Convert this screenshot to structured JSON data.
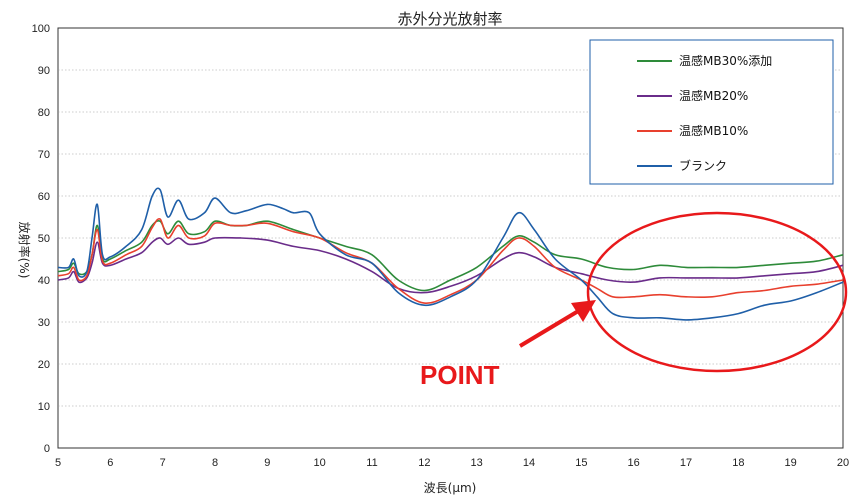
{
  "chart_data": {
    "type": "line",
    "title": "赤外分光放射率",
    "xlabel": "波長(μm)",
    "ylabel": "放射率(%)",
    "xlim": [
      5,
      20
    ],
    "ylim": [
      0,
      100
    ],
    "x_ticks": [
      "5",
      "6",
      "7",
      "8",
      "9",
      "10",
      "11",
      "12",
      "13",
      "14",
      "15",
      "16",
      "17",
      "18",
      "19",
      "20"
    ],
    "y_ticks": [
      "0",
      "10",
      "20",
      "30",
      "40",
      "50",
      "60",
      "70",
      "80",
      "90",
      "100"
    ],
    "grid": true,
    "legend_position": "top-right",
    "series": [
      {
        "name": "温感MB30%添加",
        "color": "#2e8b3a",
        "points": [
          [
            5,
            42
          ],
          [
            5.2,
            42.5
          ],
          [
            5.3,
            44
          ],
          [
            5.4,
            41.5
          ],
          [
            5.55,
            42
          ],
          [
            5.65,
            46
          ],
          [
            5.75,
            53
          ],
          [
            5.85,
            45
          ],
          [
            6,
            45
          ],
          [
            6.3,
            47
          ],
          [
            6.6,
            49
          ],
          [
            6.8,
            53
          ],
          [
            6.95,
            54
          ],
          [
            7.1,
            51
          ],
          [
            7.3,
            54
          ],
          [
            7.5,
            51
          ],
          [
            7.8,
            51.5
          ],
          [
            8,
            54
          ],
          [
            8.3,
            53
          ],
          [
            8.6,
            53
          ],
          [
            9,
            54
          ],
          [
            9.5,
            52
          ],
          [
            10,
            50
          ],
          [
            10.5,
            48
          ],
          [
            11,
            46
          ],
          [
            11.5,
            40
          ],
          [
            12,
            37.5
          ],
          [
            12.5,
            40
          ],
          [
            13,
            43
          ],
          [
            13.5,
            48
          ],
          [
            13.8,
            50.5
          ],
          [
            14.1,
            49
          ],
          [
            14.5,
            46
          ],
          [
            15,
            45
          ],
          [
            15.5,
            43
          ],
          [
            16,
            42.5
          ],
          [
            16.5,
            43.5
          ],
          [
            17,
            43
          ],
          [
            17.5,
            43
          ],
          [
            18,
            43
          ],
          [
            18.5,
            43.5
          ],
          [
            19,
            44
          ],
          [
            19.5,
            44.5
          ],
          [
            20,
            46
          ]
        ]
      },
      {
        "name": "温感MB20%",
        "color": "#6a2c8a",
        "points": [
          [
            5,
            40
          ],
          [
            5.2,
            40.5
          ],
          [
            5.3,
            42
          ],
          [
            5.4,
            39.5
          ],
          [
            5.55,
            40.5
          ],
          [
            5.65,
            44
          ],
          [
            5.75,
            49
          ],
          [
            5.85,
            44
          ],
          [
            6,
            43.5
          ],
          [
            6.3,
            45
          ],
          [
            6.6,
            46.5
          ],
          [
            6.8,
            49
          ],
          [
            6.95,
            50
          ],
          [
            7.1,
            48.5
          ],
          [
            7.3,
            50
          ],
          [
            7.5,
            48.5
          ],
          [
            7.8,
            49
          ],
          [
            8,
            50
          ],
          [
            8.5,
            50
          ],
          [
            9,
            49.5
          ],
          [
            9.5,
            48
          ],
          [
            10,
            47
          ],
          [
            10.5,
            45
          ],
          [
            11,
            42
          ],
          [
            11.5,
            38
          ],
          [
            12,
            37
          ],
          [
            12.5,
            38.5
          ],
          [
            13,
            41
          ],
          [
            13.5,
            45
          ],
          [
            13.8,
            46.5
          ],
          [
            14.1,
            45.5
          ],
          [
            14.5,
            43
          ],
          [
            15,
            41.5
          ],
          [
            15.5,
            40
          ],
          [
            16,
            39.5
          ],
          [
            16.5,
            40.5
          ],
          [
            17,
            40.5
          ],
          [
            17.5,
            40.5
          ],
          [
            18,
            40.5
          ],
          [
            18.5,
            41
          ],
          [
            19,
            41.5
          ],
          [
            19.5,
            42
          ],
          [
            20,
            43.5
          ]
        ]
      },
      {
        "name": "温感MB10%",
        "color": "#e8402e",
        "points": [
          [
            5,
            41
          ],
          [
            5.2,
            41.5
          ],
          [
            5.3,
            43
          ],
          [
            5.4,
            40
          ],
          [
            5.55,
            41
          ],
          [
            5.65,
            46
          ],
          [
            5.75,
            52
          ],
          [
            5.85,
            44.5
          ],
          [
            6,
            44
          ],
          [
            6.3,
            46
          ],
          [
            6.6,
            48
          ],
          [
            6.8,
            52.5
          ],
          [
            6.95,
            54.5
          ],
          [
            7.1,
            50
          ],
          [
            7.3,
            53
          ],
          [
            7.5,
            50
          ],
          [
            7.8,
            50.5
          ],
          [
            8,
            53.5
          ],
          [
            8.3,
            53
          ],
          [
            8.6,
            53
          ],
          [
            9,
            53.5
          ],
          [
            9.5,
            51.5
          ],
          [
            10,
            50
          ],
          [
            10.5,
            46.5
          ],
          [
            11,
            44
          ],
          [
            11.5,
            38
          ],
          [
            12,
            34.5
          ],
          [
            12.5,
            36.5
          ],
          [
            13,
            40
          ],
          [
            13.5,
            47
          ],
          [
            13.8,
            50
          ],
          [
            14.1,
            48
          ],
          [
            14.5,
            43
          ],
          [
            15,
            40
          ],
          [
            15.3,
            38
          ],
          [
            15.6,
            36
          ],
          [
            16,
            36
          ],
          [
            16.5,
            36.5
          ],
          [
            17,
            36
          ],
          [
            17.5,
            36
          ],
          [
            18,
            37
          ],
          [
            18.5,
            37.5
          ],
          [
            19,
            38.5
          ],
          [
            19.5,
            39
          ],
          [
            20,
            40
          ]
        ]
      },
      {
        "name": "ブランク",
        "color": "#1f5fa8",
        "points": [
          [
            5,
            43
          ],
          [
            5.2,
            43
          ],
          [
            5.3,
            45
          ],
          [
            5.4,
            41
          ],
          [
            5.55,
            42
          ],
          [
            5.65,
            50
          ],
          [
            5.75,
            58
          ],
          [
            5.85,
            46
          ],
          [
            6,
            45.5
          ],
          [
            6.3,
            48
          ],
          [
            6.6,
            52
          ],
          [
            6.8,
            60
          ],
          [
            6.95,
            61.5
          ],
          [
            7.1,
            55
          ],
          [
            7.3,
            59
          ],
          [
            7.5,
            54.5
          ],
          [
            7.8,
            56
          ],
          [
            8,
            59.5
          ],
          [
            8.3,
            56
          ],
          [
            8.6,
            56.5
          ],
          [
            9,
            58
          ],
          [
            9.3,
            57
          ],
          [
            9.5,
            56
          ],
          [
            9.8,
            56
          ],
          [
            10,
            51
          ],
          [
            10.5,
            46
          ],
          [
            11,
            44
          ],
          [
            11.5,
            37
          ],
          [
            12,
            34
          ],
          [
            12.5,
            36
          ],
          [
            13,
            40
          ],
          [
            13.5,
            50
          ],
          [
            13.8,
            56
          ],
          [
            14.1,
            52
          ],
          [
            14.5,
            45
          ],
          [
            15,
            40
          ],
          [
            15.3,
            36
          ],
          [
            15.6,
            32
          ],
          [
            16,
            31
          ],
          [
            16.5,
            31
          ],
          [
            17,
            30.5
          ],
          [
            17.5,
            31
          ],
          [
            18,
            32
          ],
          [
            18.5,
            34
          ],
          [
            19,
            35
          ],
          [
            19.5,
            37
          ],
          [
            20,
            39.5
          ]
        ]
      }
    ],
    "annotation": {
      "text": "POINT",
      "color": "#e8191b"
    }
  }
}
